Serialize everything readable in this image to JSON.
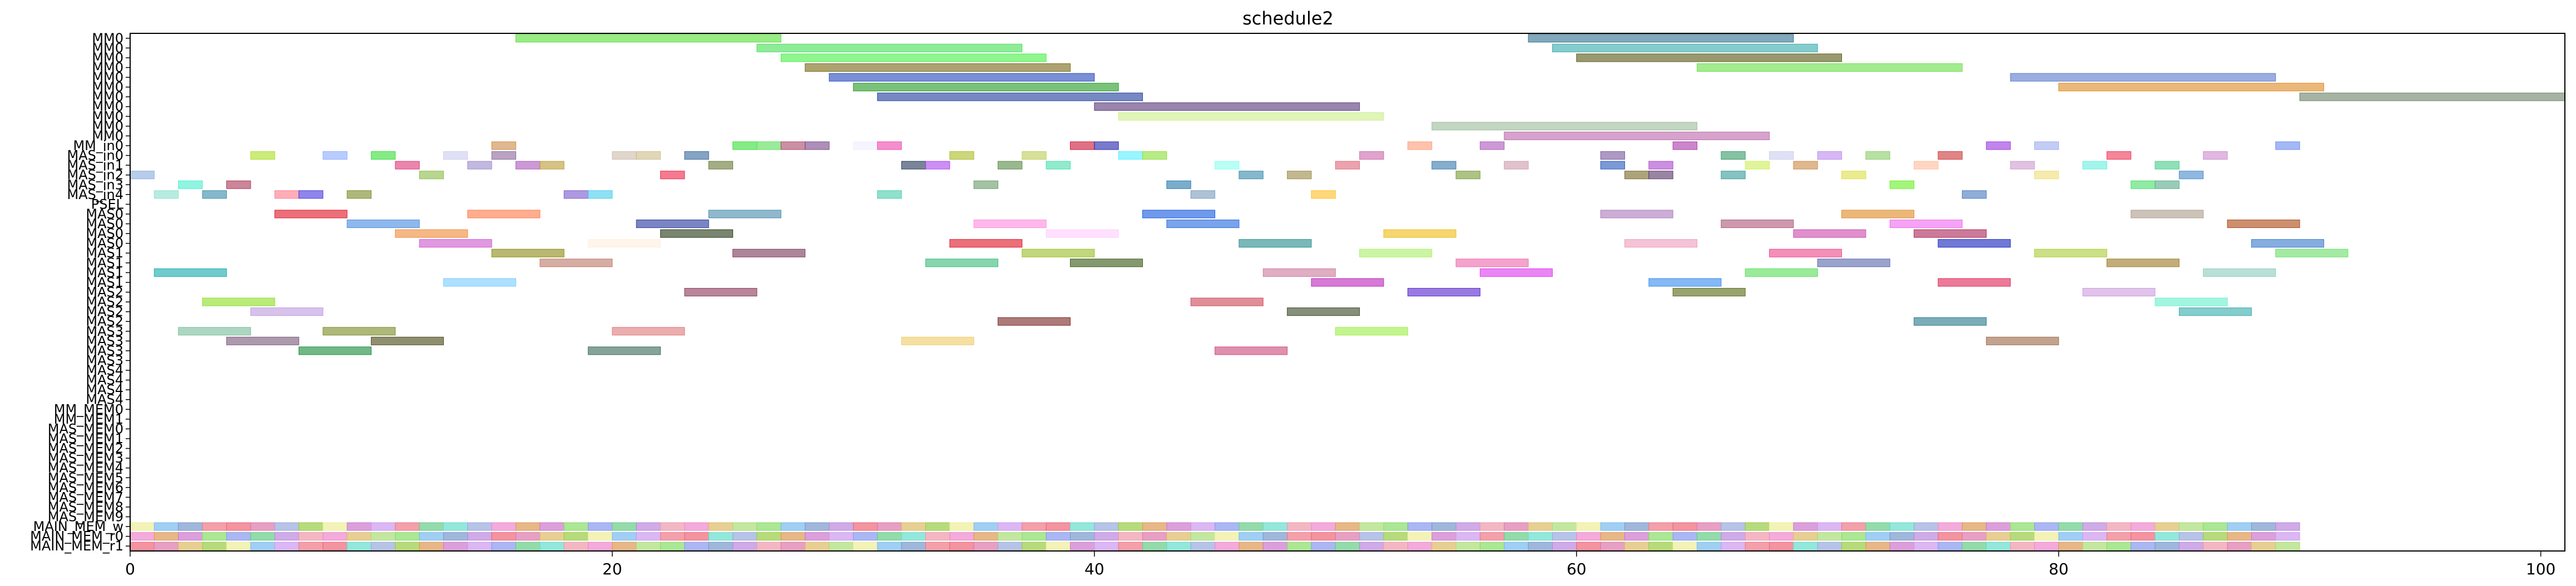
{
  "chart_data": {
    "type": "gantt",
    "title": "schedule2",
    "xlabel": "",
    "ylabel": "",
    "xlim": [
      0,
      101
    ],
    "xticks": [
      0,
      20,
      40,
      60,
      80,
      100
    ],
    "grid": false,
    "legend": "none",
    "rows": [
      "MM0",
      "MM0",
      "MM0",
      "MM0",
      "MM0",
      "MM0",
      "MM0",
      "MM0",
      "MM0",
      "MM0",
      "MM0",
      "MM_in0",
      "MAS_in0",
      "MAS_in1",
      "MAS_in2",
      "MAS_in3",
      "MAS_in4",
      "PSEL",
      "MAS0",
      "MAS0",
      "MAS0",
      "MAS0",
      "MAS1",
      "MAS1",
      "MAS1",
      "MAS1",
      "MAS2",
      "MAS2",
      "MAS2",
      "MAS2",
      "MAS3",
      "MAS3",
      "MAS3",
      "MAS3",
      "MAS4",
      "MAS4",
      "MAS4",
      "MAS4",
      "MM_MEM0",
      "MM_MEM1",
      "MAS_MEM0",
      "MAS_MEM1",
      "MAS_MEM2",
      "MAS_MEM3",
      "MAS_MEM4",
      "MAS_MEM5",
      "MAS_MEM6",
      "MAS_MEM7",
      "MAS_MEM8",
      "MAS_MEM9",
      "MAIN_MEM_w",
      "MAIN_MEM_r0",
      "MAIN_MEM_r1"
    ],
    "bars": [
      {
        "row": 0,
        "start": 16,
        "end": 27,
        "color": "#55dd33"
      },
      {
        "row": 0,
        "start": 58,
        "end": 69,
        "color": "#2d6e8e"
      },
      {
        "row": 1,
        "start": 26,
        "end": 37,
        "color": "#44dd55"
      },
      {
        "row": 1,
        "start": 59,
        "end": 70,
        "color": "#33aaaa"
      },
      {
        "row": 2,
        "start": 27,
        "end": 38,
        "color": "#44ee44"
      },
      {
        "row": 2,
        "start": 60,
        "end": 71,
        "color": "#555511"
      },
      {
        "row": 3,
        "start": 28,
        "end": 39,
        "color": "#776611"
      },
      {
        "row": 3,
        "start": 65,
        "end": 76,
        "color": "#66dd44"
      },
      {
        "row": 4,
        "start": 29,
        "end": 40,
        "color": "#2244bb"
      },
      {
        "row": 4,
        "start": 78,
        "end": 89,
        "color": "#5577cc"
      },
      {
        "row": 5,
        "start": 30,
        "end": 41,
        "color": "#229922"
      },
      {
        "row": 5,
        "start": 80,
        "end": 91,
        "color": "#dd8822"
      },
      {
        "row": 6,
        "start": 31,
        "end": 42,
        "color": "#1a3a99"
      },
      {
        "row": 6,
        "start": 90,
        "end": 101,
        "color": "#6b8066"
      },
      {
        "row": 7,
        "start": 40,
        "end": 51,
        "color": "#553377"
      },
      {
        "row": 8,
        "start": 41,
        "end": 52,
        "color": "#ccee88"
      },
      {
        "row": 9,
        "start": 54,
        "end": 65,
        "color": "#99bb99"
      },
      {
        "row": 10,
        "start": 57,
        "end": 68,
        "color": "#bb66aa"
      },
      {
        "row": 11,
        "start": 15,
        "end": 16,
        "color": "#cc8844"
      },
      {
        "row": 11,
        "start": 25,
        "end": 26,
        "color": "#33dd33"
      },
      {
        "row": 11,
        "start": 26,
        "end": 27,
        "color": "#55dd55"
      },
      {
        "row": 11,
        "start": 27,
        "end": 28,
        "color": "#aa4466"
      },
      {
        "row": 11,
        "start": 28,
        "end": 29,
        "color": "#774488"
      },
      {
        "row": 11,
        "start": 30,
        "end": 31,
        "color": "#eeeeff"
      },
      {
        "row": 11,
        "start": 31,
        "end": 32,
        "color": "#ee44aa"
      },
      {
        "row": 11,
        "start": 39,
        "end": 40,
        "color": "#cc1133"
      },
      {
        "row": 11,
        "start": 40,
        "end": 41,
        "color": "#2222aa"
      },
      {
        "row": 11,
        "start": 53,
        "end": 54,
        "color": "#ff9977"
      },
      {
        "row": 11,
        "start": 56,
        "end": 57,
        "color": "#aa55bb"
      },
      {
        "row": 11,
        "start": 64,
        "end": 65,
        "color": "#aa33aa"
      },
      {
        "row": 11,
        "start": 77,
        "end": 78,
        "color": "#9933dd"
      },
      {
        "row": 11,
        "start": 79,
        "end": 80,
        "color": "#99aaee"
      },
      {
        "row": 11,
        "start": 89,
        "end": 90,
        "color": "#6688ee"
      },
      {
        "row": 12,
        "start": 5,
        "end": 6,
        "color": "#aadd22"
      },
      {
        "row": 12,
        "start": 8,
        "end": 9,
        "color": "#88aaff"
      },
      {
        "row": 12,
        "start": 10,
        "end": 11,
        "color": "#33dd33"
      },
      {
        "row": 12,
        "start": 13,
        "end": 14,
        "color": "#ccccee"
      },
      {
        "row": 12,
        "start": 15,
        "end": 16,
        "color": "#886699"
      },
      {
        "row": 12,
        "start": 20,
        "end": 21,
        "color": "#ccbbaa"
      },
      {
        "row": 12,
        "start": 21,
        "end": 22,
        "color": "#ccbb88"
      },
      {
        "row": 12,
        "start": 23,
        "end": 24,
        "color": "#336699"
      },
      {
        "row": 12,
        "start": 34,
        "end": 35,
        "color": "#aabb22"
      },
      {
        "row": 12,
        "start": 37,
        "end": 38,
        "color": "#bbcc55"
      },
      {
        "row": 12,
        "start": 41,
        "end": 42,
        "color": "#55eeff"
      },
      {
        "row": 12,
        "start": 42,
        "end": 43,
        "color": "#88dd33"
      },
      {
        "row": 12,
        "start": 51,
        "end": 52,
        "color": "#cc66aa"
      },
      {
        "row": 12,
        "start": 61,
        "end": 62,
        "color": "#775599"
      },
      {
        "row": 12,
        "start": 66,
        "end": 67,
        "color": "#339966"
      },
      {
        "row": 12,
        "start": 68,
        "end": 69,
        "color": "#ccccee"
      },
      {
        "row": 12,
        "start": 70,
        "end": 71,
        "color": "#bb88ee"
      },
      {
        "row": 12,
        "start": 72,
        "end": 73,
        "color": "#88cc66"
      },
      {
        "row": 12,
        "start": 75,
        "end": 76,
        "color": "#cc3333"
      },
      {
        "row": 12,
        "start": 82,
        "end": 83,
        "color": "#ee3355"
      },
      {
        "row": 12,
        "start": 86,
        "end": 87,
        "color": "#cc88cc"
      },
      {
        "row": 13,
        "start": 11,
        "end": 12,
        "color": "#dd3377"
      },
      {
        "row": 13,
        "start": 14,
        "end": 15,
        "color": "#9988cc"
      },
      {
        "row": 13,
        "start": 16,
        "end": 17,
        "color": "#aa55bb"
      },
      {
        "row": 13,
        "start": 17,
        "end": 18,
        "color": "#bb9933"
      },
      {
        "row": 13,
        "start": 24,
        "end": 25,
        "color": "#667733"
      },
      {
        "row": 13,
        "start": 32,
        "end": 33,
        "color": "#223355"
      },
      {
        "row": 13,
        "start": 33,
        "end": 34,
        "color": "#aa44ee"
      },
      {
        "row": 13,
        "start": 36,
        "end": 37,
        "color": "#558844"
      },
      {
        "row": 13,
        "start": 38,
        "end": 39,
        "color": "#44ddaa"
      },
      {
        "row": 13,
        "start": 45,
        "end": 46,
        "color": "#88ffee"
      },
      {
        "row": 13,
        "start": 50,
        "end": 51,
        "color": "#dd6677"
      },
      {
        "row": 13,
        "start": 54,
        "end": 55,
        "color": "#3377aa"
      },
      {
        "row": 13,
        "start": 57,
        "end": 58,
        "color": "#cc99aa"
      },
      {
        "row": 13,
        "start": 61,
        "end": 62,
        "color": "#2255bb"
      },
      {
        "row": 13,
        "start": 63,
        "end": 64,
        "color": "#aa44cc"
      },
      {
        "row": 13,
        "start": 67,
        "end": 68,
        "color": "#ccee55"
      },
      {
        "row": 13,
        "start": 69,
        "end": 70,
        "color": "#cc8844"
      },
      {
        "row": 13,
        "start": 74,
        "end": 75,
        "color": "#ffbb99"
      },
      {
        "row": 13,
        "start": 78,
        "end": 79,
        "color": "#cc99cc"
      },
      {
        "row": 13,
        "start": 81,
        "end": 82,
        "color": "#66eedd"
      },
      {
        "row": 13,
        "start": 84,
        "end": 85,
        "color": "#44cc88"
      },
      {
        "row": 14,
        "start": 0,
        "end": 1,
        "color": "#88aadd"
      },
      {
        "row": 14,
        "start": 12,
        "end": 13,
        "color": "#88bb44"
      },
      {
        "row": 14,
        "start": 22,
        "end": 23,
        "color": "#ee2244"
      },
      {
        "row": 14,
        "start": 46,
        "end": 47,
        "color": "#3388aa"
      },
      {
        "row": 14,
        "start": 48,
        "end": 49,
        "color": "#998844"
      },
      {
        "row": 14,
        "start": 55,
        "end": 56,
        "color": "#779933"
      },
      {
        "row": 14,
        "start": 62,
        "end": 63,
        "color": "#776622"
      },
      {
        "row": 14,
        "start": 63,
        "end": 64,
        "color": "#553366"
      },
      {
        "row": 14,
        "start": 66,
        "end": 67,
        "color": "#339999"
      },
      {
        "row": 14,
        "start": 71,
        "end": 72,
        "color": "#dddd44"
      },
      {
        "row": 14,
        "start": 79,
        "end": 80,
        "color": "#eedd77"
      },
      {
        "row": 14,
        "start": 85,
        "end": 86,
        "color": "#4488cc"
      },
      {
        "row": 15,
        "start": 2,
        "end": 3,
        "color": "#44eecc"
      },
      {
        "row": 15,
        "start": 4,
        "end": 5,
        "color": "#aa3355"
      },
      {
        "row": 15,
        "start": 35,
        "end": 36,
        "color": "#669966"
      },
      {
        "row": 15,
        "start": 43,
        "end": 44,
        "color": "#2277aa"
      },
      {
        "row": 15,
        "start": 73,
        "end": 74,
        "color": "#66ee22"
      },
      {
        "row": 15,
        "start": 83,
        "end": 84,
        "color": "#44dd66"
      },
      {
        "row": 15,
        "start": 84,
        "end": 85,
        "color": "#55aa88"
      },
      {
        "row": 16,
        "start": 1,
        "end": 2,
        "color": "#88ddcc"
      },
      {
        "row": 16,
        "start": 3,
        "end": 4,
        "color": "#3388aa"
      },
      {
        "row": 16,
        "start": 6,
        "end": 7,
        "color": "#ff7788"
      },
      {
        "row": 16,
        "start": 7,
        "end": 8,
        "color": "#4433dd"
      },
      {
        "row": 16,
        "start": 9,
        "end": 10,
        "color": "#778822"
      },
      {
        "row": 16,
        "start": 18,
        "end": 19,
        "color": "#7755cc"
      },
      {
        "row": 16,
        "start": 19,
        "end": 20,
        "color": "#44ccee"
      },
      {
        "row": 16,
        "start": 31,
        "end": 32,
        "color": "#44ccaa"
      },
      {
        "row": 16,
        "start": 44,
        "end": 45,
        "color": "#7799bb"
      },
      {
        "row": 16,
        "start": 49,
        "end": 50,
        "color": "#ffbb22"
      },
      {
        "row": 16,
        "start": 76,
        "end": 77,
        "color": "#4477bb"
      },
      {
        "row": 18,
        "start": 6,
        "end": 9,
        "color": "#dd1122"
      },
      {
        "row": 18,
        "start": 14,
        "end": 17,
        "color": "#ff7744"
      },
      {
        "row": 18,
        "start": 24,
        "end": 27,
        "color": "#4488aa"
      },
      {
        "row": 18,
        "start": 42,
        "end": 45,
        "color": "#1155dd"
      },
      {
        "row": 18,
        "start": 61,
        "end": 64,
        "color": "#aa77bb"
      },
      {
        "row": 18,
        "start": 71,
        "end": 74,
        "color": "#dd8822"
      },
      {
        "row": 18,
        "start": 83,
        "end": 86,
        "color": "#aa9988"
      },
      {
        "row": 19,
        "start": 9,
        "end": 12,
        "color": "#4488dd"
      },
      {
        "row": 19,
        "start": 21,
        "end": 24,
        "color": "#223399"
      },
      {
        "row": 19,
        "start": 35,
        "end": 38,
        "color": "#ff88dd"
      },
      {
        "row": 19,
        "start": 43,
        "end": 46,
        "color": "#2266dd"
      },
      {
        "row": 19,
        "start": 66,
        "end": 69,
        "color": "#aa5577"
      },
      {
        "row": 19,
        "start": 73,
        "end": 76,
        "color": "#ee66ee"
      },
      {
        "row": 19,
        "start": 87,
        "end": 90,
        "color": "#aa4411"
      },
      {
        "row": 20,
        "start": 11,
        "end": 14,
        "color": "#ee8833"
      },
      {
        "row": 20,
        "start": 22,
        "end": 25,
        "color": "#223311"
      },
      {
        "row": 20,
        "start": 38,
        "end": 41,
        "color": "#ffccff"
      },
      {
        "row": 20,
        "start": 52,
        "end": 55,
        "color": "#eebb11"
      },
      {
        "row": 20,
        "start": 69,
        "end": 72,
        "color": "#cc44aa"
      },
      {
        "row": 20,
        "start": 74,
        "end": 77,
        "color": "#aa2255"
      },
      {
        "row": 21,
        "start": 12,
        "end": 15,
        "color": "#cc55cc"
      },
      {
        "row": 21,
        "start": 19,
        "end": 22,
        "color": "#ffeedd"
      },
      {
        "row": 21,
        "start": 34,
        "end": 37,
        "color": "#dd1122"
      },
      {
        "row": 21,
        "start": 46,
        "end": 49,
        "color": "#22888a"
      },
      {
        "row": 21,
        "start": 62,
        "end": 65,
        "color": "#ee99bb"
      },
      {
        "row": 21,
        "start": 75,
        "end": 78,
        "color": "#1122bb"
      },
      {
        "row": 21,
        "start": 88,
        "end": 91,
        "color": "#3377cc"
      },
      {
        "row": 22,
        "start": 15,
        "end": 18,
        "color": "#888811"
      },
      {
        "row": 22,
        "start": 25,
        "end": 28,
        "color": "#773355"
      },
      {
        "row": 22,
        "start": 37,
        "end": 40,
        "color": "#99bb22"
      },
      {
        "row": 22,
        "start": 51,
        "end": 54,
        "color": "#aaee66"
      },
      {
        "row": 22,
        "start": 68,
        "end": 71,
        "color": "#ee4488"
      },
      {
        "row": 22,
        "start": 79,
        "end": 82,
        "color": "#aacc33"
      },
      {
        "row": 22,
        "start": 89,
        "end": 92,
        "color": "#66dd66"
      },
      {
        "row": 23,
        "start": 17,
        "end": 20,
        "color": "#bb7766"
      },
      {
        "row": 23,
        "start": 33,
        "end": 36,
        "color": "#33bb77"
      },
      {
        "row": 23,
        "start": 39,
        "end": 42,
        "color": "#335511"
      },
      {
        "row": 23,
        "start": 55,
        "end": 58,
        "color": "#ee66aa"
      },
      {
        "row": 23,
        "start": 70,
        "end": 73,
        "color": "#5566aa"
      },
      {
        "row": 23,
        "start": 82,
        "end": 85,
        "color": "#997722"
      },
      {
        "row": 24,
        "start": 1,
        "end": 4,
        "color": "#11aaaa"
      },
      {
        "row": 24,
        "start": 47,
        "end": 50,
        "color": "#cc7799"
      },
      {
        "row": 24,
        "start": 56,
        "end": 59,
        "color": "#dd33ee"
      },
      {
        "row": 24,
        "start": 67,
        "end": 70,
        "color": "#55dd55"
      },
      {
        "row": 24,
        "start": 86,
        "end": 89,
        "color": "#88ccbb"
      },
      {
        "row": 25,
        "start": 13,
        "end": 16,
        "color": "#77ccff"
      },
      {
        "row": 25,
        "start": 49,
        "end": 52,
        "color": "#bb22bb"
      },
      {
        "row": 25,
        "start": 63,
        "end": 66,
        "color": "#3388ee"
      },
      {
        "row": 25,
        "start": 75,
        "end": 78,
        "color": "#dd2255"
      },
      {
        "row": 26,
        "start": 23,
        "end": 26,
        "color": "#883355"
      },
      {
        "row": 26,
        "start": 53,
        "end": 56,
        "color": "#5522cc"
      },
      {
        "row": 26,
        "start": 64,
        "end": 67,
        "color": "#556611"
      },
      {
        "row": 26,
        "start": 81,
        "end": 84,
        "color": "#cc99dd"
      },
      {
        "row": 27,
        "start": 3,
        "end": 6,
        "color": "#88dd22"
      },
      {
        "row": 27,
        "start": 44,
        "end": 47,
        "color": "#cc4455"
      },
      {
        "row": 27,
        "start": 84,
        "end": 87,
        "color": "#66eecc"
      },
      {
        "row": 28,
        "start": 5,
        "end": 8,
        "color": "#bb99dd"
      },
      {
        "row": 28,
        "start": 48,
        "end": 51,
        "color": "#334422"
      },
      {
        "row": 28,
        "start": 85,
        "end": 88,
        "color": "#33aaaa"
      },
      {
        "row": 29,
        "start": 36,
        "end": 39,
        "color": "#772222"
      },
      {
        "row": 29,
        "start": 74,
        "end": 77,
        "color": "#227788"
      },
      {
        "row": 30,
        "start": 2,
        "end": 5,
        "color": "#77bb99"
      },
      {
        "row": 30,
        "start": 8,
        "end": 11,
        "color": "#778822"
      },
      {
        "row": 30,
        "start": 20,
        "end": 23,
        "color": "#dd7777"
      },
      {
        "row": 30,
        "start": 50,
        "end": 53,
        "color": "#99ee44"
      },
      {
        "row": 31,
        "start": 4,
        "end": 7,
        "color": "#775577"
      },
      {
        "row": 31,
        "start": 10,
        "end": 13,
        "color": "#444411"
      },
      {
        "row": 31,
        "start": 32,
        "end": 35,
        "color": "#eecc66"
      },
      {
        "row": 31,
        "start": 77,
        "end": 80,
        "color": "#996644"
      },
      {
        "row": 32,
        "start": 7,
        "end": 10,
        "color": "#118833"
      },
      {
        "row": 32,
        "start": 19,
        "end": 22,
        "color": "#336655"
      },
      {
        "row": 32,
        "start": 45,
        "end": 48,
        "color": "#cc4477"
      }
    ],
    "memory_rows": [
      50,
      51,
      52
    ],
    "memory_xlim": [
      0,
      90
    ],
    "memory_palette": [
      "#eeee99",
      "#ee7788",
      "#99aadd",
      "#cc77cc",
      "#66cc88",
      "#ee88cc",
      "#88dd66",
      "#bb88dd",
      "#ddbb66",
      "#77bbee",
      "#ee6677",
      "#99cc44",
      "#cc99ee",
      "#66ddcc",
      "#dd9955",
      "#8899ee",
      "#ee99aa",
      "#aadd77",
      "#7799cc",
      "#dd77aa"
    ]
  }
}
